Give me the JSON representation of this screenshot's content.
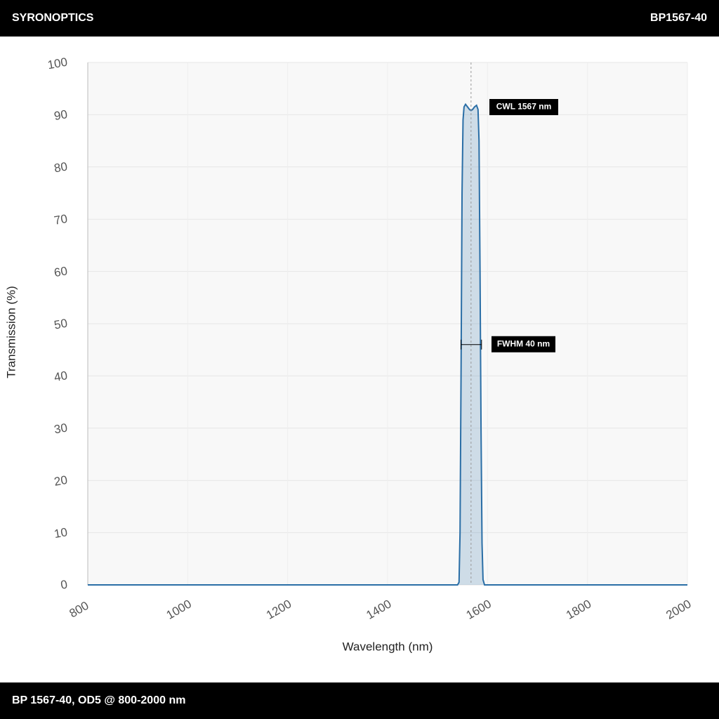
{
  "header": {
    "left": "SYRONOPTICS",
    "right": "BP1567-40"
  },
  "footer": "BP 1567-40, OD5 @ 800-2000 nm",
  "chart_data": {
    "type": "line",
    "xlabel": "Wavelength (nm)",
    "ylabel": "Transmission (%)",
    "xlim": [
      800,
      2000
    ],
    "xticks": [
      800,
      1000,
      1200,
      1400,
      1600,
      1800,
      2000
    ],
    "ylim": [
      0,
      100
    ],
    "yticks": [
      0,
      10,
      20,
      30,
      40,
      50,
      60,
      70,
      80,
      90,
      100
    ],
    "grid": true,
    "series": [
      {
        "color": "#2a6ea6",
        "x": [
          800,
          1540,
          1543,
          1545,
          1547,
          1549,
          1551,
          1553,
          1556,
          1560,
          1564,
          1567,
          1570,
          1574,
          1578,
          1581,
          1583,
          1585,
          1587,
          1589,
          1591,
          1594,
          2000
        ],
        "values": [
          0,
          0,
          0.5,
          10,
          40,
          75,
          89,
          91.5,
          92,
          91.5,
          91,
          90.8,
          91,
          91.5,
          91.8,
          91,
          85,
          60,
          30,
          8,
          1,
          0,
          0
        ]
      }
    ],
    "annotations": [
      {
        "text": "CWL 1567 nm",
        "x": 1567
      },
      {
        "text": "FWHM 40 nm",
        "x": [
          1547,
          1588
        ],
        "y": 46
      }
    ]
  }
}
